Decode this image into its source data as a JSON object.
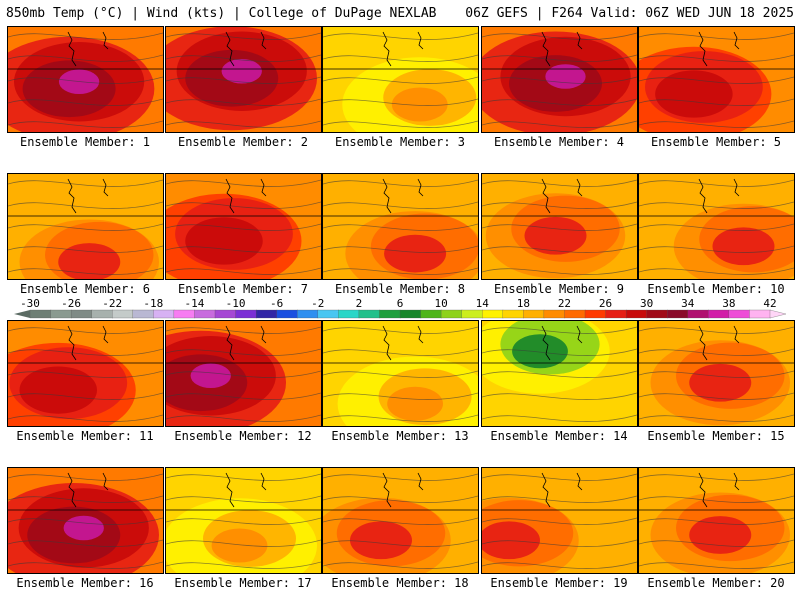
{
  "header": {
    "title_left": "850mb Temp (°C) | Wind (kts) | College of DuPage NEXLAB",
    "title_right": "06Z GEFS | F264 Valid: 06Z WED JUN 18 2025"
  },
  "colorbar": {
    "labels": [
      "-30",
      "-26",
      "-22",
      "-18",
      "-14",
      "-10",
      "-6",
      "-2",
      "2",
      "6",
      "10",
      "14",
      "18",
      "22",
      "26",
      "30",
      "34",
      "38",
      "42"
    ],
    "colors": [
      "#6e7f75",
      "#8a9a90",
      "#7f8b86",
      "#a7b1ad",
      "#c4cbc9",
      "#b9b8d3",
      "#d7b1f3",
      "#f77cf2",
      "#c86bde",
      "#a547d4",
      "#7b2fd5",
      "#3226a6",
      "#1a4fe0",
      "#2f8ff0",
      "#49c6f2",
      "#2ad6c8",
      "#22c08b",
      "#1f9f3e",
      "#18862b",
      "#4fb51a",
      "#8ed21a",
      "#ccee1e",
      "#fff200",
      "#ffd400",
      "#ffb000",
      "#ff8c00",
      "#ff6a00",
      "#ff3a00",
      "#e61e14",
      "#c80a0a",
      "#a00a18",
      "#8a0a2a",
      "#b01070",
      "#d21ca8",
      "#ee4ed7",
      "#ffb3f0"
    ]
  },
  "members": [
    {
      "label": "Ensemble Member: 1",
      "theme": "hot-core"
    },
    {
      "label": "Ensemble Member: 2",
      "theme": "hot-core"
    },
    {
      "label": "Ensemble Member: 3",
      "theme": "mild"
    },
    {
      "label": "Ensemble Member: 4",
      "theme": "hot-core"
    },
    {
      "label": "Ensemble Member: 5",
      "theme": "hot"
    },
    {
      "label": "Ensemble Member: 6",
      "theme": "warm"
    },
    {
      "label": "Ensemble Member: 7",
      "theme": "hot"
    },
    {
      "label": "Ensemble Member: 8",
      "theme": "warm"
    },
    {
      "label": "Ensemble Member: 9",
      "theme": "warm"
    },
    {
      "label": "Ensemble Member: 10",
      "theme": "warm"
    },
    {
      "label": "Ensemble Member: 11",
      "theme": "hot"
    },
    {
      "label": "Ensemble Member: 12",
      "theme": "hot-core"
    },
    {
      "label": "Ensemble Member: 13",
      "theme": "mild"
    },
    {
      "label": "Ensemble Member: 14",
      "theme": "cool"
    },
    {
      "label": "Ensemble Member: 15",
      "theme": "warm"
    },
    {
      "label": "Ensemble Member: 16",
      "theme": "hot-core"
    },
    {
      "label": "Ensemble Member: 17",
      "theme": "mild"
    },
    {
      "label": "Ensemble Member: 18",
      "theme": "warm"
    },
    {
      "label": "Ensemble Member: 19",
      "theme": "warm"
    },
    {
      "label": "Ensemble Member: 20",
      "theme": "warm"
    }
  ]
}
